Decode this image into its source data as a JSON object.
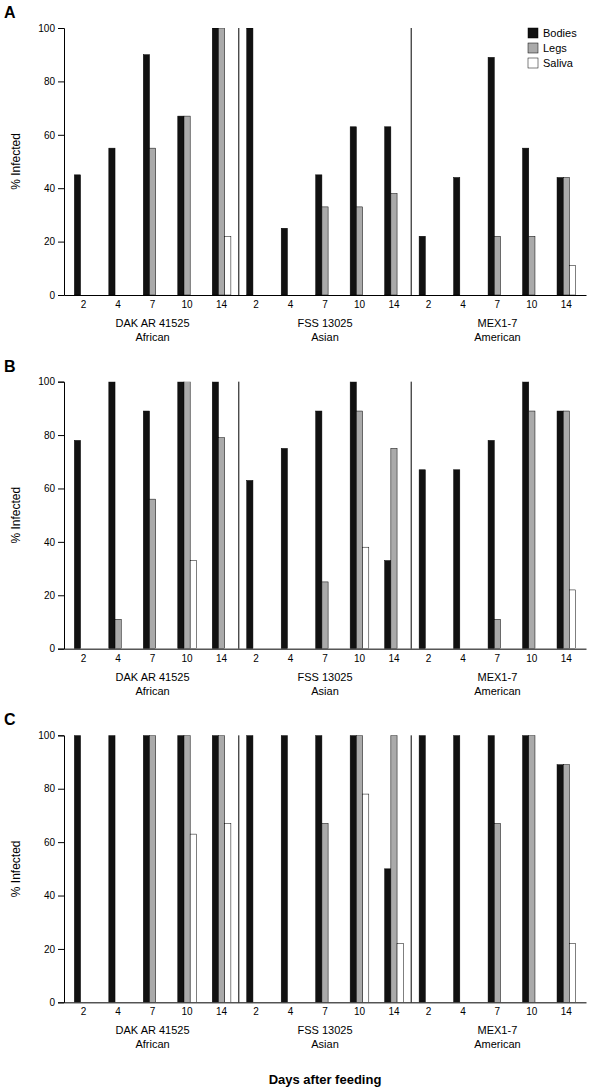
{
  "chart_data": [
    {
      "type": "bar",
      "title": "A",
      "ylabel": "% Infected",
      "categories": [
        "2",
        "4",
        "7",
        "10",
        "14",
        "2",
        "4",
        "7",
        "10",
        "14",
        "2",
        "4",
        "7",
        "10",
        "14"
      ],
      "groups": [
        [
          "DAK AR 41525",
          "African"
        ],
        [
          "FSS 13025",
          "Asian"
        ],
        [
          "MEX1-7",
          "American"
        ]
      ],
      "series": [
        {
          "name": "Bodies",
          "color": "#111111",
          "values": [
            45,
            55,
            90,
            67,
            100,
            100,
            25,
            45,
            63,
            63,
            22,
            44,
            89,
            55,
            44
          ]
        },
        {
          "name": "Legs",
          "color": "#aaaaaa",
          "values": [
            0,
            0,
            55,
            67,
            100,
            0,
            0,
            33,
            33,
            38,
            0,
            0,
            22,
            22,
            44
          ]
        },
        {
          "name": "Saliva",
          "color": "#ffffff",
          "values": [
            0,
            0,
            0,
            0,
            22,
            0,
            0,
            0,
            0,
            0,
            0,
            0,
            0,
            0,
            11
          ]
        }
      ],
      "ylim": [
        0,
        100
      ],
      "yticks": [
        0,
        20,
        40,
        60,
        80,
        100
      ],
      "grid": false,
      "legend": "upper right"
    },
    {
      "type": "bar",
      "title": "B",
      "ylabel": "% Infected",
      "categories": [
        "2",
        "4",
        "7",
        "10",
        "14",
        "2",
        "4",
        "7",
        "10",
        "14",
        "2",
        "4",
        "7",
        "10",
        "14"
      ],
      "groups": [
        [
          "DAK AR 41525",
          "African"
        ],
        [
          "FSS 13025",
          "Asian"
        ],
        [
          "MEX1-7",
          "American"
        ]
      ],
      "series": [
        {
          "name": "Bodies",
          "color": "#111111",
          "values": [
            78,
            100,
            89,
            100,
            100,
            63,
            75,
            89,
            100,
            33,
            67,
            67,
            78,
            100,
            89
          ]
        },
        {
          "name": "Legs",
          "color": "#aaaaaa",
          "values": [
            0,
            11,
            56,
            100,
            79,
            0,
            0,
            25,
            89,
            75,
            0,
            0,
            11,
            89,
            89
          ]
        },
        {
          "name": "Saliva",
          "color": "#ffffff",
          "values": [
            0,
            0,
            0,
            33,
            0,
            0,
            0,
            0,
            38,
            0,
            0,
            0,
            0,
            0,
            22
          ]
        }
      ],
      "ylim": [
        0,
        100
      ],
      "yticks": [
        0,
        20,
        40,
        60,
        80,
        100
      ],
      "grid": false
    },
    {
      "type": "bar",
      "title": "C",
      "ylabel": "% Infected",
      "xlabel": "Days after feeding",
      "categories": [
        "2",
        "4",
        "7",
        "10",
        "14",
        "2",
        "4",
        "7",
        "10",
        "14",
        "2",
        "4",
        "7",
        "10",
        "14"
      ],
      "groups": [
        [
          "DAK AR 41525",
          "African"
        ],
        [
          "FSS 13025",
          "Asian"
        ],
        [
          "MEX1-7",
          "American"
        ]
      ],
      "series": [
        {
          "name": "Bodies",
          "color": "#111111",
          "values": [
            100,
            100,
            100,
            100,
            100,
            100,
            100,
            100,
            100,
            50,
            100,
            100,
            100,
            100,
            89
          ]
        },
        {
          "name": "Legs",
          "color": "#aaaaaa",
          "values": [
            0,
            0,
            100,
            100,
            100,
            0,
            0,
            67,
            100,
            100,
            0,
            0,
            67,
            100,
            89
          ]
        },
        {
          "name": "Saliva",
          "color": "#ffffff",
          "values": [
            0,
            0,
            0,
            63,
            67,
            0,
            0,
            0,
            78,
            22,
            0,
            0,
            0,
            0,
            22
          ]
        }
      ],
      "ylim": [
        0,
        100
      ],
      "yticks": [
        0,
        20,
        40,
        60,
        80,
        100
      ],
      "grid": false
    }
  ]
}
